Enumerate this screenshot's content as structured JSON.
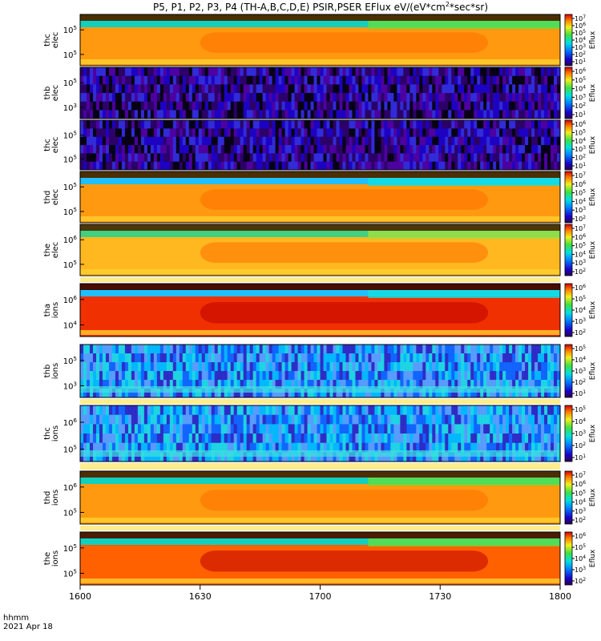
{
  "title": {
    "text": "P5, P1, P2, P3, P4 (TH-A,B,C,D,E) PSIR,PSER EFlux eV/(eV*cm",
    "sup": "2",
    "tail": "*sec*sr)"
  },
  "footer": {
    "line1": "hhmm",
    "line2": "2021 Apr 18"
  },
  "chart_data": {
    "type": "heatmap",
    "xlabel": "hhmm",
    "date": "2021 Apr 18",
    "x_ticks": [
      "1600",
      "1630",
      "1700",
      "1730",
      "1800"
    ],
    "x_range_hhmm": [
      "1600",
      "1800"
    ],
    "colorbar_label": "Eflux",
    "scale": "log",
    "panels": [
      {
        "probe": "thc",
        "species": "elec",
        "yticks": [
          {
            "v": "10",
            "e": "5"
          },
          {
            "v": "10",
            "e": "5"
          }
        ],
        "cbar": [
          "7",
          "6",
          "5",
          "4",
          "3",
          "2",
          "1"
        ],
        "cbar_base": "10",
        "bg": "orange",
        "top_band": "cyan-green",
        "noise": false
      },
      {
        "probe": "thb",
        "species": "elec",
        "yticks": [
          {
            "v": "10",
            "e": "5"
          },
          {
            "v": "10",
            "e": "3"
          }
        ],
        "cbar": [
          "6",
          "5",
          "4",
          "3",
          "2",
          "1"
        ],
        "cbar_base": "10",
        "bg": "noise",
        "top_band": "none",
        "noise": true
      },
      {
        "probe": "thc",
        "species": "elec",
        "yticks": [
          {
            "v": "10",
            "e": "5"
          },
          {
            "v": "10",
            "e": "5"
          }
        ],
        "cbar": [
          "6",
          "5",
          "4",
          "3",
          "2",
          "1"
        ],
        "cbar_base": "10",
        "bg": "noise",
        "top_band": "none",
        "noise": true
      },
      {
        "probe": "thd",
        "species": "elec",
        "yticks": [
          {
            "v": "10",
            "e": "5"
          },
          {
            "v": "10",
            "e": "5"
          }
        ],
        "cbar": [
          "7",
          "6",
          "5",
          "4",
          "3",
          "2"
        ],
        "cbar_base": "10",
        "bg": "orange",
        "top_band": "cyan",
        "noise": false
      },
      {
        "probe": "the",
        "species": "elec",
        "yticks": [
          {
            "v": "10",
            "e": "6"
          },
          {
            "v": "10",
            "e": "5"
          }
        ],
        "cbar": [
          "7",
          "6",
          "5",
          "4",
          "3",
          "2"
        ],
        "cbar_base": "10",
        "bg": "yellow-orange",
        "top_band": "green",
        "noise": false
      },
      {
        "probe": "tha",
        "species": "ions",
        "yticks": [
          {
            "v": "10",
            "e": "6"
          },
          {
            "v": "10",
            "e": "4"
          }
        ],
        "cbar": [
          "6",
          "5",
          "4",
          "3",
          "2"
        ],
        "cbar_base": "10",
        "bg": "red",
        "top_band": "cyan",
        "noise": false
      },
      {
        "probe": "thb",
        "species": "ions",
        "yticks": [
          {
            "v": "10",
            "e": "5"
          },
          {
            "v": "10",
            "e": "3"
          }
        ],
        "cbar": [
          "5",
          "4",
          "3",
          "2",
          "1"
        ],
        "cbar_base": "10",
        "bg": "blue-cyan",
        "top_band": "none",
        "noise": true
      },
      {
        "probe": "thc",
        "species": "ions",
        "yticks": [
          {
            "v": "10",
            "e": "6"
          },
          {
            "v": "10",
            "e": "5"
          }
        ],
        "cbar": [
          "5",
          "4",
          "3",
          "2",
          "1"
        ],
        "cbar_base": "10",
        "bg": "blue-cyan",
        "top_band": "none",
        "noise": true
      },
      {
        "probe": "thd",
        "species": "ions",
        "yticks": [
          {
            "v": "10",
            "e": "6"
          },
          {
            "v": "10",
            "e": "5"
          }
        ],
        "cbar": [
          "7",
          "6",
          "5",
          "4",
          "3",
          "2"
        ],
        "cbar_base": "10",
        "bg": "orange",
        "top_band": "cyan-green",
        "noise": false
      },
      {
        "probe": "the",
        "species": "ions",
        "yticks": [
          {
            "v": "10",
            "e": "5"
          },
          {
            "v": "10",
            "e": "5"
          }
        ],
        "cbar": [
          "6",
          "5",
          "4",
          "3",
          "2"
        ],
        "cbar_base": "10",
        "bg": "red-orange",
        "top_band": "cyan-green",
        "noise": false
      }
    ]
  }
}
